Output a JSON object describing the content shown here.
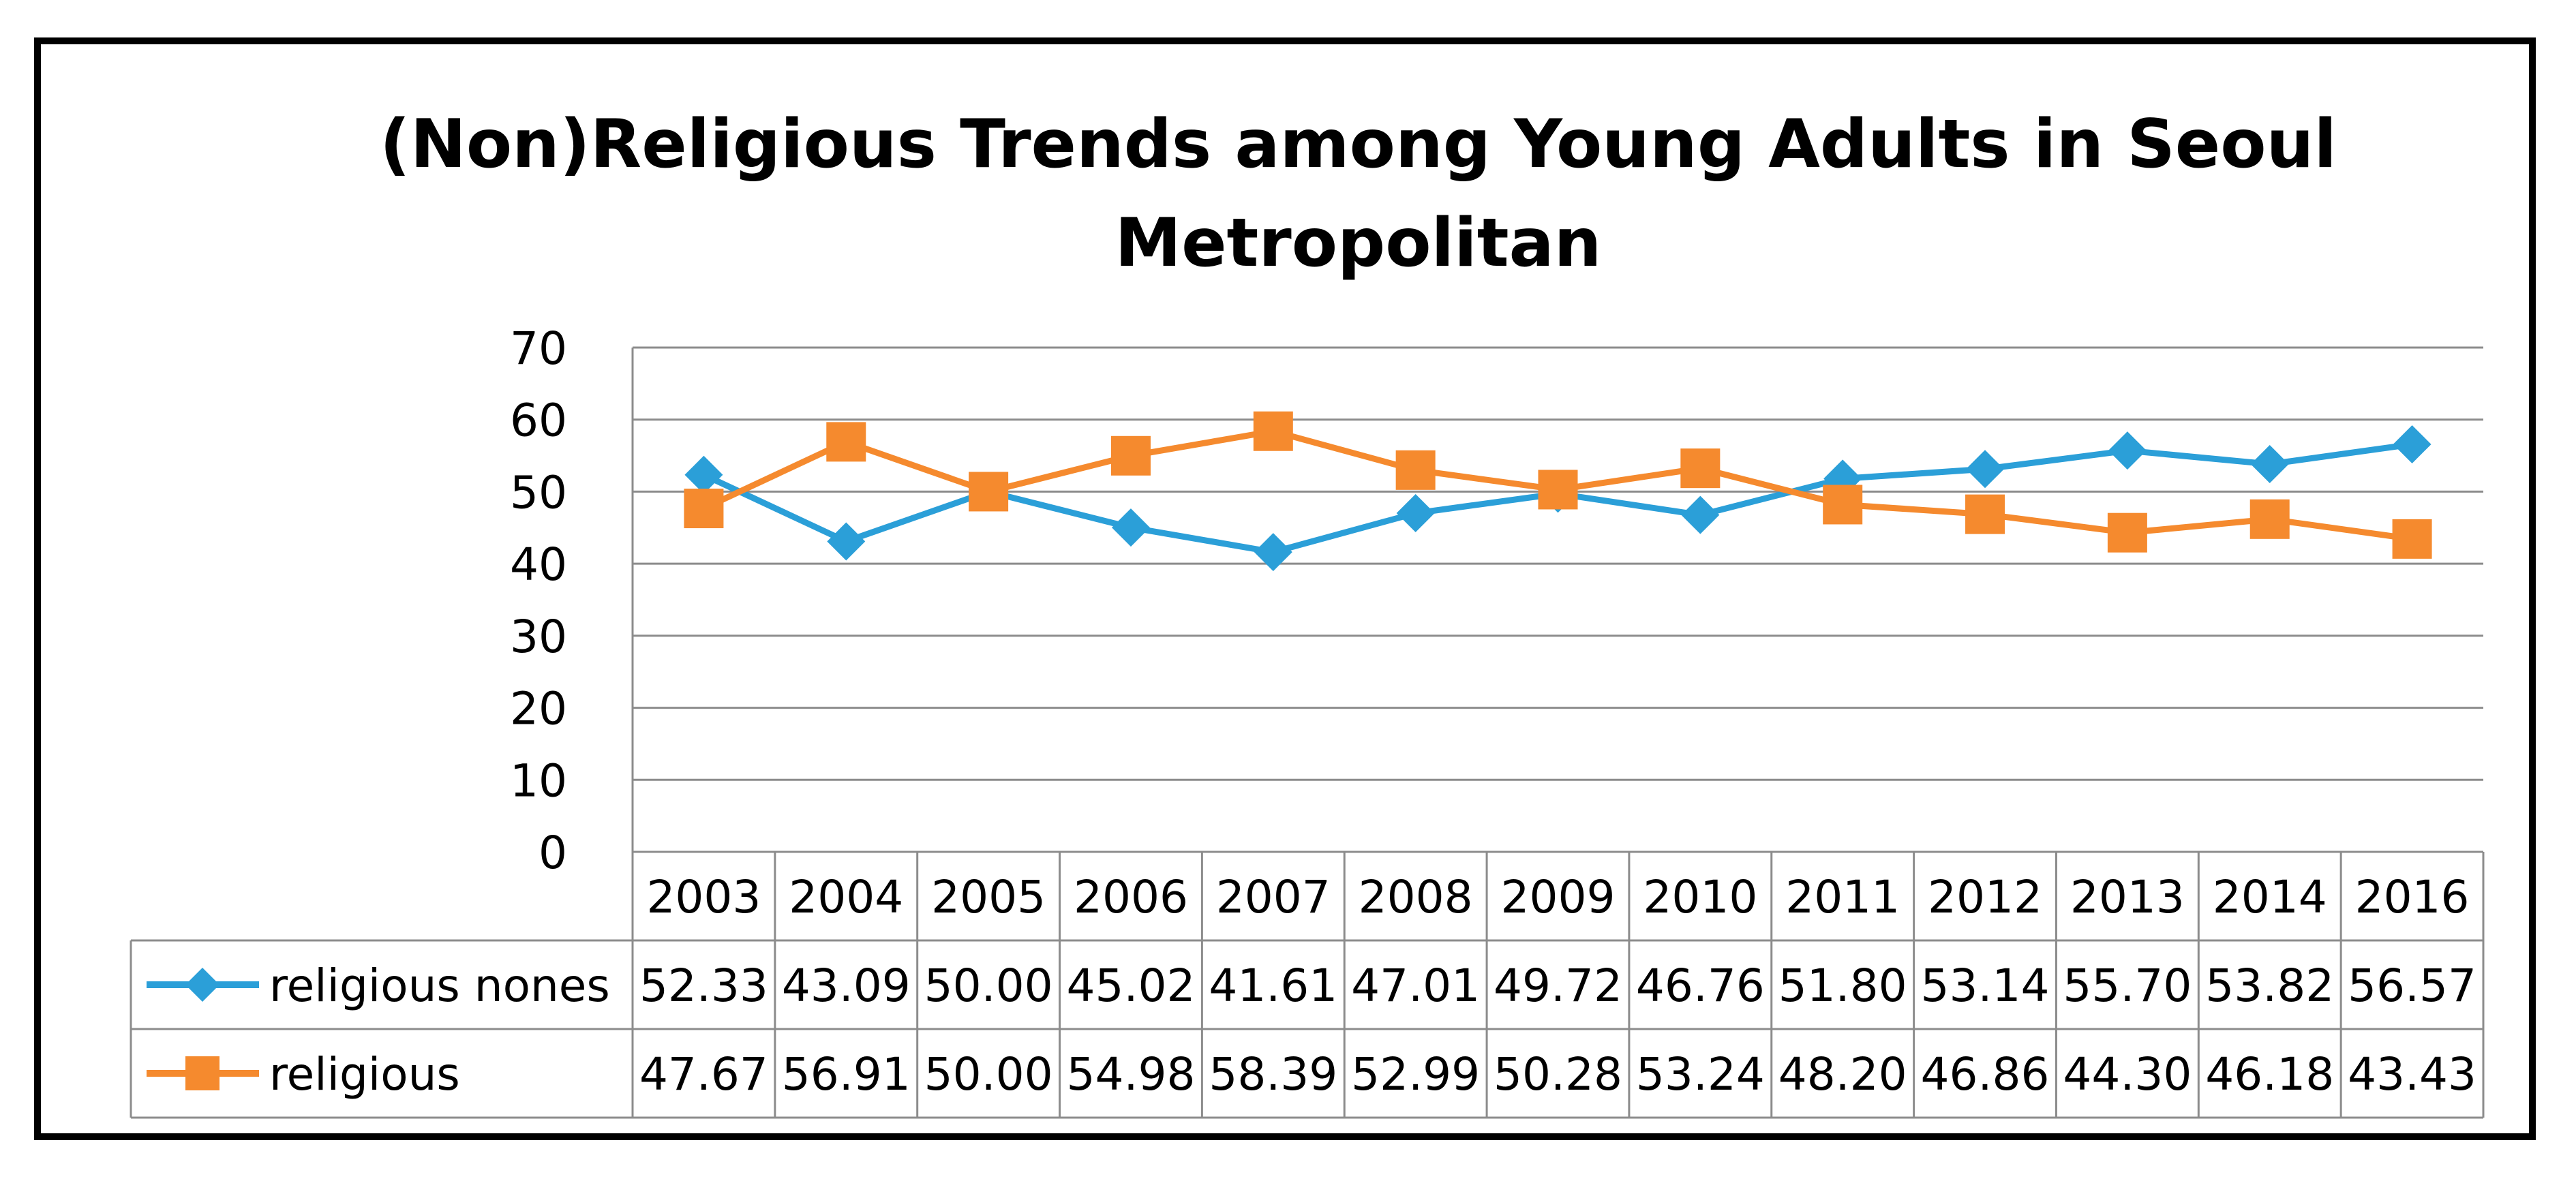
{
  "chart_data": {
    "type": "line",
    "title": "(Non)Religious Trends among Young Adults in Seoul Metropolitan",
    "title_lines": [
      "(Non)Religious Trends among Young Adults in Seoul",
      "Metropolitan"
    ],
    "categories": [
      "2003",
      "2004",
      "2005",
      "2006",
      "2007",
      "2008",
      "2009",
      "2010",
      "2011",
      "2012",
      "2013",
      "2014",
      "2016"
    ],
    "y_ticks": [
      "0",
      "10",
      "20",
      "30",
      "40",
      "50",
      "60",
      "70"
    ],
    "ylim": [
      0,
      70
    ],
    "xlabel": "",
    "ylabel": "",
    "grid": true,
    "legend": "data-table",
    "series": [
      {
        "name": "religious nones",
        "color": "#2b9fd8",
        "marker": "diamond",
        "values": [
          52.33,
          43.09,
          50.0,
          45.02,
          41.61,
          47.01,
          49.72,
          46.76,
          51.8,
          53.14,
          55.7,
          53.82,
          56.57
        ],
        "labels": [
          "52.33",
          "43.09",
          "50.00",
          "45.02",
          "41.61",
          "47.01",
          "49.72",
          "46.76",
          "51.80",
          "53.14",
          "55.70",
          "53.82",
          "56.57"
        ]
      },
      {
        "name": "religious",
        "color": "#f58a2e",
        "marker": "square",
        "values": [
          47.67,
          56.91,
          50.0,
          54.98,
          58.39,
          52.99,
          50.28,
          53.24,
          48.2,
          46.86,
          44.3,
          46.18,
          43.43
        ],
        "labels": [
          "47.67",
          "56.91",
          "50.00",
          "54.98",
          "58.39",
          "52.99",
          "50.28",
          "53.24",
          "48.20",
          "46.86",
          "44.30",
          "46.18",
          "43.43"
        ]
      }
    ]
  }
}
